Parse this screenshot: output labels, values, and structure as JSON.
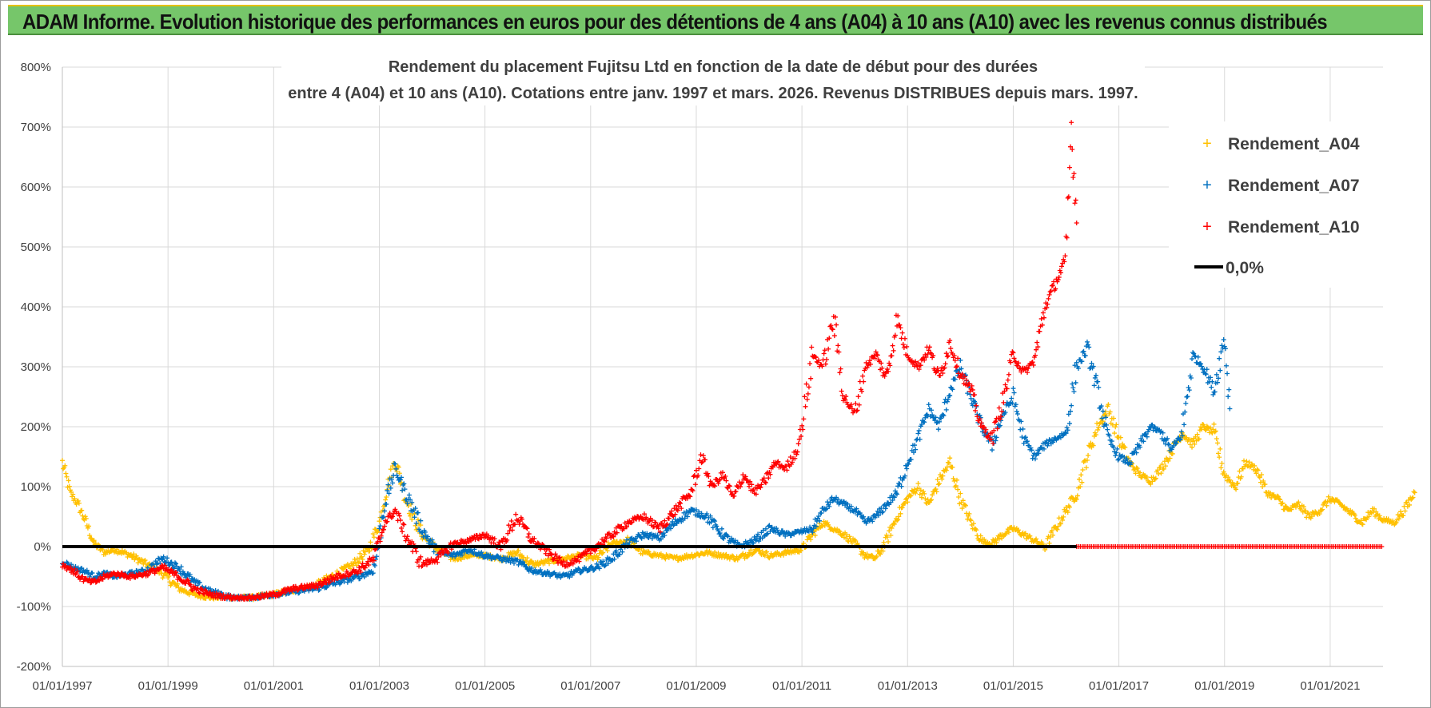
{
  "header": {
    "title": "ADAM Informe. Evolution historique des performances en euros pour des détentions de 4 ans (A04) à 10 ans (A10) avec les revenus connus distribués"
  },
  "colors": {
    "header_bg": "#76c66a",
    "a04": "#ffc000",
    "a07": "#0070c0",
    "a10": "#ff0000",
    "zero_line": "#000000",
    "grid": "#d9d9d9"
  },
  "chart_data": {
    "type": "scatter",
    "title_line1": "Rendement du placement Fujitsu Ltd en fonction de la date de début pour des durées",
    "title_line2": "entre 4 (A04) et 10 ans (A10). Cotations entre janv. 1997 et mars. 2026. Revenus DISTRIBUES depuis mars. 1997.",
    "ylim": [
      -200,
      800
    ],
    "y_ticks": [
      "-200%",
      "-100%",
      "0%",
      "100%",
      "200%",
      "300%",
      "400%",
      "500%",
      "600%",
      "700%",
      "800%"
    ],
    "xlim": [
      1997.0,
      2022.0
    ],
    "x_ticks": [
      "01/01/1997",
      "01/01/1999",
      "01/01/2001",
      "01/01/2003",
      "01/01/2005",
      "01/01/2007",
      "01/01/2009",
      "01/01/2011",
      "01/01/2013",
      "01/01/2015",
      "01/01/2017",
      "01/01/2019",
      "01/01/2021"
    ],
    "legend": {
      "position": "top-right",
      "entries": [
        "Rendement_A04",
        "Rendement_A07",
        "Rendement_A10",
        "0,0%"
      ]
    },
    "series": [
      {
        "name": "Rendement_A04",
        "marker": "+",
        "x": [
          1997.0,
          1997.15,
          1997.3,
          1997.45,
          1997.6,
          1997.8,
          1998.0,
          1998.3,
          1998.6,
          1998.9,
          1999.2,
          1999.5,
          1999.8,
          2000.2,
          2000.6,
          2001.0,
          2001.4,
          2001.8,
          2002.2,
          2002.5,
          2002.8,
          2003.0,
          2003.15,
          2003.3,
          2003.5,
          2003.8,
          2004.1,
          2004.4,
          2004.7,
          2005.0,
          2005.3,
          2005.6,
          2005.9,
          2006.2,
          2006.5,
          2006.8,
          2007.1,
          2007.4,
          2007.7,
          2008.0,
          2008.3,
          2008.6,
          2008.9,
          2009.2,
          2009.5,
          2009.8,
          2010.1,
          2010.4,
          2010.7,
          2011.0,
          2011.2,
          2011.4,
          2011.6,
          2011.8,
          2012.0,
          2012.2,
          2012.4,
          2012.6,
          2012.8,
          2013.0,
          2013.2,
          2013.4,
          2013.6,
          2013.8,
          2014.0,
          2014.2,
          2014.4,
          2014.6,
          2014.8,
          2015.0,
          2015.2,
          2015.4,
          2015.6,
          2015.8,
          2016.0,
          2016.2,
          2016.4,
          2016.6,
          2016.8,
          2017.0,
          2017.2,
          2017.4,
          2017.6,
          2017.8,
          2018.0,
          2018.2,
          2018.4,
          2018.6,
          2018.8,
          2019.0,
          2019.2,
          2019.4,
          2019.6,
          2019.8,
          2020.0,
          2020.2,
          2020.4,
          2020.6,
          2020.8,
          2021.0,
          2021.2,
          2021.4,
          2021.6,
          2021.8,
          2022.0,
          2022.2,
          2022.4,
          2022.6
        ],
        "y": [
          140,
          90,
          70,
          40,
          5,
          -10,
          -5,
          -15,
          -30,
          -45,
          -70,
          -80,
          -85,
          -85,
          -85,
          -80,
          -72,
          -65,
          -45,
          -30,
          -5,
          40,
          100,
          145,
          80,
          20,
          -5,
          -20,
          -15,
          -15,
          -20,
          -10,
          -30,
          -25,
          -20,
          -15,
          -20,
          5,
          10,
          -10,
          -15,
          -20,
          -15,
          -10,
          -15,
          -20,
          -5,
          -15,
          -10,
          -5,
          20,
          40,
          30,
          20,
          5,
          -15,
          -20,
          10,
          50,
          80,
          100,
          70,
          110,
          140,
          80,
          40,
          10,
          5,
          20,
          30,
          20,
          10,
          0,
          30,
          60,
          90,
          150,
          200,
          230,
          180,
          140,
          120,
          110,
          130,
          160,
          190,
          170,
          200,
          190,
          120,
          100,
          140,
          130,
          90,
          80,
          60,
          70,
          50,
          60,
          80,
          70,
          55,
          40,
          60,
          45,
          40,
          60,
          90
        ]
      },
      {
        "name": "Rendement_A07",
        "marker": "+",
        "x": [
          1997.0,
          1997.2,
          1997.4,
          1997.6,
          1997.8,
          1998.0,
          1998.3,
          1998.6,
          1998.9,
          1999.2,
          1999.5,
          1999.8,
          2000.2,
          2000.6,
          2001.0,
          2001.4,
          2001.8,
          2002.2,
          2002.6,
          2002.9,
          2003.1,
          2003.3,
          2003.5,
          2003.8,
          2004.1,
          2004.4,
          2004.7,
          2005.0,
          2005.3,
          2005.6,
          2005.9,
          2006.2,
          2006.5,
          2006.8,
          2007.1,
          2007.4,
          2007.7,
          2008.0,
          2008.3,
          2008.6,
          2008.9,
          2009.2,
          2009.5,
          2009.8,
          2010.1,
          2010.4,
          2010.7,
          2011.0,
          2011.2,
          2011.4,
          2011.6,
          2011.8,
          2012.0,
          2012.2,
          2012.4,
          2012.6,
          2012.8,
          2013.0,
          2013.2,
          2013.4,
          2013.6,
          2013.8,
          2014.0,
          2014.2,
          2014.4,
          2014.6,
          2014.8,
          2015.0,
          2015.2,
          2015.4,
          2015.6,
          2015.8,
          2016.0,
          2016.2,
          2016.4,
          2016.6,
          2016.8,
          2017.0,
          2017.2,
          2017.4,
          2017.6,
          2017.8,
          2018.0,
          2018.2,
          2018.4,
          2018.6,
          2018.8,
          2019.0,
          2019.1
        ],
        "y": [
          -25,
          -35,
          -40,
          -50,
          -45,
          -50,
          -45,
          -40,
          -20,
          -35,
          -60,
          -75,
          -85,
          -85,
          -80,
          -75,
          -70,
          -60,
          -50,
          -40,
          70,
          130,
          90,
          30,
          -10,
          -15,
          -5,
          -15,
          -20,
          -25,
          -40,
          -45,
          -50,
          -40,
          -35,
          -20,
          5,
          20,
          15,
          40,
          60,
          50,
          20,
          0,
          10,
          30,
          20,
          25,
          30,
          60,
          80,
          70,
          60,
          40,
          50,
          70,
          90,
          140,
          180,
          230,
          200,
          260,
          300,
          250,
          200,
          170,
          220,
          250,
          180,
          150,
          170,
          180,
          190,
          300,
          330,
          260,
          180,
          150,
          140,
          170,
          200,
          190,
          160,
          190,
          320,
          300,
          260,
          350,
          230
        ]
      },
      {
        "name": "Rendement_A10",
        "marker": "+",
        "x": [
          1997.0,
          1997.2,
          1997.4,
          1997.6,
          1997.8,
          1998.0,
          1998.3,
          1998.6,
          1998.9,
          1999.2,
          1999.5,
          1999.8,
          2000.2,
          2000.6,
          2001.0,
          2001.4,
          2001.8,
          2002.2,
          2002.6,
          2002.9,
          2003.1,
          2003.3,
          2003.5,
          2003.8,
          2004.1,
          2004.4,
          2004.7,
          2005.0,
          2005.3,
          2005.6,
          2005.9,
          2006.2,
          2006.5,
          2006.8,
          2007.1,
          2007.4,
          2007.7,
          2008.0,
          2008.3,
          2008.6,
          2008.9,
          2009.1,
          2009.3,
          2009.5,
          2009.7,
          2009.9,
          2010.1,
          2010.3,
          2010.5,
          2010.7,
          2010.9,
          2011.0,
          2011.2,
          2011.4,
          2011.6,
          2011.8,
          2012.0,
          2012.2,
          2012.4,
          2012.6,
          2012.8,
          2013.0,
          2013.2,
          2013.4,
          2013.6,
          2013.8,
          2014.0,
          2014.2,
          2014.4,
          2014.6,
          2014.8,
          2015.0,
          2015.2,
          2015.4,
          2015.6,
          2015.8,
          2016.0,
          2016.1,
          2016.2
        ],
        "y": [
          -30,
          -40,
          -55,
          -60,
          -50,
          -45,
          -50,
          -45,
          -35,
          -50,
          -70,
          -80,
          -85,
          -85,
          -80,
          -70,
          -65,
          -50,
          -40,
          -20,
          40,
          60,
          20,
          -30,
          -20,
          5,
          10,
          20,
          0,
          50,
          10,
          -10,
          -30,
          -20,
          0,
          20,
          40,
          50,
          30,
          60,
          90,
          150,
          100,
          120,
          80,
          120,
          90,
          110,
          140,
          130,
          160,
          200,
          320,
          300,
          380,
          250,
          220,
          300,
          320,
          280,
          380,
          320,
          300,
          330,
          280,
          340,
          290,
          260,
          200,
          180,
          240,
          320,
          290,
          310,
          400,
          440,
          480,
          700,
          540
        ]
      }
    ]
  }
}
